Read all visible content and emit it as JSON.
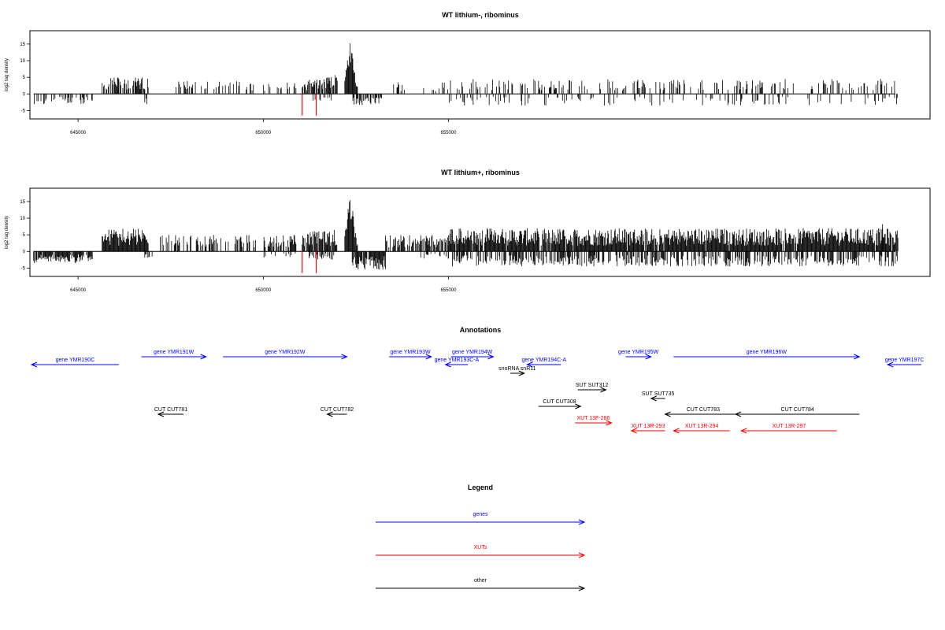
{
  "chart_data": [
    {
      "type": "bar",
      "title": "WT lithium-, ribominus",
      "ylabel": "log2 tag density",
      "xlabel": "",
      "xlim": [
        643700,
        668000
      ],
      "ylim": [
        -7.5,
        19
      ],
      "yticks": [
        -5,
        0,
        5,
        10,
        15
      ],
      "xticks": [
        645000,
        650000,
        655000
      ],
      "xtick_labels": [
        "645000",
        "650000",
        "655000"
      ],
      "baseline": [
        643800,
        668700
      ],
      "highlight_bars": {
        "color": "#ff0000",
        "x": [
          651050,
          651430
        ],
        "y": -6.5
      },
      "profile": {
        "segments": [
          {
            "from": 643800,
            "to": 645400,
            "side": "neg",
            "max": 3.5,
            "density": 0.35
          },
          {
            "from": 645650,
            "to": 646900,
            "side": "pos",
            "max": 5,
            "density": 0.7
          },
          {
            "from": 646800,
            "to": 646860,
            "side": "neg",
            "max": 3.5,
            "density": 0.8
          },
          {
            "from": 647500,
            "to": 649800,
            "side": "pos",
            "max": 4,
            "density": 0.3
          },
          {
            "from": 650000,
            "to": 650900,
            "side": "pos",
            "max": 3.5,
            "density": 0.35
          },
          {
            "from": 651050,
            "to": 651600,
            "side": "pos",
            "max": 4.5,
            "density": 0.8
          },
          {
            "from": 651600,
            "to": 652000,
            "side": "pos",
            "max": 6,
            "density": 0.9
          },
          {
            "from": 651200,
            "to": 652000,
            "side": "neg",
            "max": 2,
            "density": 0.3
          },
          {
            "from": 652200,
            "to": 652550,
            "side": "pos",
            "max": 17.5,
            "density": 1.0,
            "peak": 652350
          },
          {
            "from": 652400,
            "to": 653200,
            "side": "neg",
            "max": 3.5,
            "density": 0.7
          },
          {
            "from": 653500,
            "to": 655000,
            "side": "pos",
            "max": 3.5,
            "density": 0.3
          },
          {
            "from": 655000,
            "to": 668200,
            "side": "pos",
            "max": 4.5,
            "density": 0.25
          },
          {
            "from": 655000,
            "to": 668400,
            "side": "neg",
            "max": 3.5,
            "density": 0.15
          },
          {
            "from": 667800,
            "to": 668400,
            "side": "neg",
            "max": 4,
            "density": 0.6
          }
        ]
      }
    },
    {
      "type": "bar",
      "title": "WT lithium+, ribominus",
      "ylabel": "log2 tag density",
      "xlabel": "",
      "xlim": [
        643700,
        668000
      ],
      "ylim": [
        -7.5,
        19
      ],
      "yticks": [
        -5,
        0,
        5,
        10,
        15
      ],
      "xticks": [
        645000,
        650000,
        655000
      ],
      "xtick_labels": [
        "645000",
        "650000",
        "655000"
      ],
      "baseline": [
        643800,
        668700
      ],
      "highlight_bars": {
        "color": "#ff0000",
        "x": [
          651050,
          651430
        ],
        "y": -6.5
      },
      "profile": {
        "segments": [
          {
            "from": 643800,
            "to": 645400,
            "side": "neg",
            "max": 3.5,
            "density": 0.9
          },
          {
            "from": 645650,
            "to": 646900,
            "side": "pos",
            "max": 7,
            "density": 1.0
          },
          {
            "from": 646800,
            "to": 647000,
            "side": "neg",
            "max": 2.5,
            "density": 0.5
          },
          {
            "from": 647200,
            "to": 649800,
            "side": "pos",
            "max": 5,
            "density": 0.45
          },
          {
            "from": 650000,
            "to": 650900,
            "side": "pos",
            "max": 5,
            "density": 0.6
          },
          {
            "from": 650000,
            "to": 650900,
            "side": "neg",
            "max": 2,
            "density": 0.2
          },
          {
            "from": 651050,
            "to": 652000,
            "side": "pos",
            "max": 6.5,
            "density": 0.95
          },
          {
            "from": 651200,
            "to": 652000,
            "side": "neg",
            "max": 2.5,
            "density": 0.5
          },
          {
            "from": 652200,
            "to": 652550,
            "side": "pos",
            "max": 18.5,
            "density": 1.0,
            "peak": 652350
          },
          {
            "from": 652400,
            "to": 653300,
            "side": "neg",
            "max": 5.5,
            "density": 0.9
          },
          {
            "from": 653300,
            "to": 655000,
            "side": "pos",
            "max": 5,
            "density": 0.6
          },
          {
            "from": 654200,
            "to": 655000,
            "side": "neg",
            "max": 2.5,
            "density": 0.3
          },
          {
            "from": 655000,
            "to": 668000,
            "side": "pos",
            "max": 7,
            "density": 0.95
          },
          {
            "from": 655000,
            "to": 668500,
            "side": "neg",
            "max": 4.5,
            "density": 0.55
          },
          {
            "from": 667900,
            "to": 668500,
            "side": "neg",
            "max": 5,
            "density": 0.8
          },
          {
            "from": 666700,
            "to": 666740,
            "side": "pos",
            "max": 9.5,
            "density": 1.0
          }
        ]
      }
    }
  ],
  "annotations": {
    "title": "Annotations",
    "colors": {
      "genes": "#0000ff",
      "XUTs": "#ff0000",
      "other": "#000000"
    },
    "features": [
      {
        "label": "gene YMR190C",
        "kind": "genes",
        "strand": "-",
        "start": 643700,
        "end": 645250,
        "row": 0
      },
      {
        "label": "gene YMR191W",
        "kind": "genes",
        "strand": "+",
        "start": 645650,
        "end": 646800,
        "row": 1
      },
      {
        "label": "gene YMR192W",
        "kind": "genes",
        "strand": "+",
        "start": 647100,
        "end": 649300,
        "row": 1
      },
      {
        "label": "gene YMR193W",
        "kind": "genes",
        "strand": "+",
        "start": 650050,
        "end": 650800,
        "row": 1
      },
      {
        "label": "gene YMR194W",
        "kind": "genes",
        "strand": "+",
        "start": 651150,
        "end": 651900,
        "row": 1
      },
      {
        "label": "gene YMR193C-A",
        "kind": "genes",
        "strand": "-",
        "start": 651050,
        "end": 651450,
        "row": 0
      },
      {
        "label": "gene YMR194C-A",
        "kind": "genes",
        "strand": "-",
        "start": 652500,
        "end": 653100,
        "row": 0
      },
      {
        "label": "snoRNA snR11",
        "kind": "other",
        "strand": "+",
        "start": 652200,
        "end": 652450,
        "row": -1
      },
      {
        "label": "gene YMR195W",
        "kind": "genes",
        "strand": "+",
        "start": 654250,
        "end": 654700,
        "row": 1
      },
      {
        "label": "gene YMR196W",
        "kind": "genes",
        "strand": "+",
        "start": 655100,
        "end": 658400,
        "row": 1
      },
      {
        "label": "gene YMR197C",
        "kind": "genes",
        "strand": "-",
        "start": 658900,
        "end": 659500,
        "row": 0
      },
      {
        "label": "SUT SUT312",
        "kind": "other",
        "strand": "+",
        "start": 653400,
        "end": 653900,
        "row": -2
      },
      {
        "label": "SUT SUT735",
        "kind": "other",
        "strand": "-",
        "start": 654700,
        "end": 654950,
        "row": -3
      },
      {
        "label": "CUT CUT781",
        "kind": "other",
        "strand": "-",
        "start": 645950,
        "end": 646400,
        "row": -4
      },
      {
        "label": "CUT CUT782",
        "kind": "other",
        "strand": "-",
        "start": 648950,
        "end": 649300,
        "row": -4
      },
      {
        "label": "CUT CUT308",
        "kind": "other",
        "strand": "+",
        "start": 652700,
        "end": 653450,
        "row": -3.5
      },
      {
        "label": "CUT CUT783",
        "kind": "other",
        "strand": "-",
        "start": 654950,
        "end": 656300,
        "row": -4
      },
      {
        "label": "CUT CUT784",
        "kind": "other",
        "strand": "-",
        "start": 656200,
        "end": 658400,
        "row": -4
      },
      {
        "label": "XUT 13F-286",
        "kind": "XUTs",
        "strand": "+",
        "start": 653350,
        "end": 654000,
        "row": -5
      },
      {
        "label": "XUT 13R-293",
        "kind": "XUTs",
        "strand": "-",
        "start": 654350,
        "end": 654950,
        "row": -6
      },
      {
        "label": "XUT 13R-294",
        "kind": "XUTs",
        "strand": "-",
        "start": 655100,
        "end": 656100,
        "row": -6
      },
      {
        "label": "XUT 13R-297",
        "kind": "XUTs",
        "strand": "-",
        "start": 656300,
        "end": 658000,
        "row": -6
      }
    ]
  },
  "legend": {
    "title": "Legend",
    "entries": [
      {
        "label": "genes",
        "color": "#0000ff"
      },
      {
        "label": "XUTs",
        "color": "#ff0000"
      },
      {
        "label": "other",
        "color": "#000000"
      }
    ]
  }
}
